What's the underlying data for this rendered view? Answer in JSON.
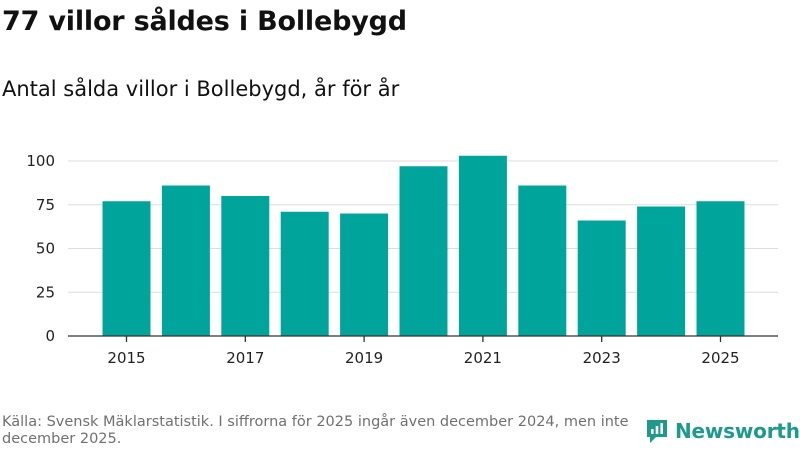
{
  "header": {
    "title": "77 villor såldes i Bollebygd",
    "subtitle": "Antal sålda villor i Bollebygd, år för år"
  },
  "chart_data": {
    "type": "bar",
    "categories": [
      "2015",
      "2016",
      "2017",
      "2018",
      "2019",
      "2020",
      "2021",
      "2022",
      "2023",
      "2024",
      "2025"
    ],
    "values": [
      77,
      86,
      80,
      71,
      70,
      97,
      103,
      86,
      66,
      74,
      77
    ],
    "x_tick_labels": [
      "2015",
      "2017",
      "2019",
      "2021",
      "2023",
      "2025"
    ],
    "y_ticks": [
      0,
      25,
      50,
      75,
      100
    ],
    "ylim": [
      0,
      108
    ],
    "xlabel": "",
    "ylabel": "",
    "title": "Antal sålda villor i Bollebygd, år för år",
    "grid": true,
    "bar_color": "#00a49a"
  },
  "footer": {
    "source": "Källa: Svensk Mäklarstatistik. I siffrorna för 2025 ingår även december 2024, men inte december 2025.",
    "brand": "Newsworthy",
    "brand_icon": "newsworthy-logo-icon"
  },
  "colors": {
    "bar": "#00a49a",
    "brand": "#1e9a8d",
    "gridline": "#dddddd",
    "axis": "#333333"
  }
}
